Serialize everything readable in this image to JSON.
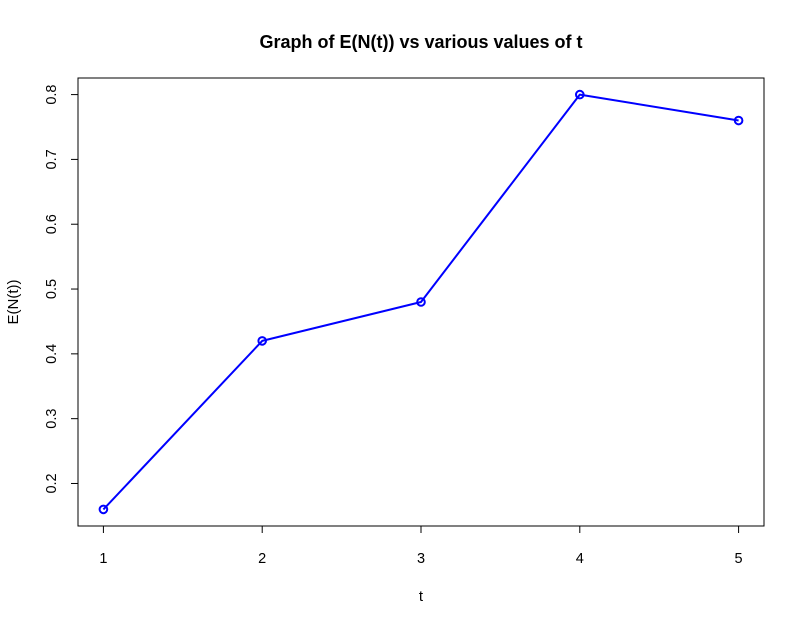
{
  "chart_data": {
    "type": "line",
    "title": "Graph of E(N(t)) vs various values of t",
    "xlabel": "t",
    "ylabel": "E(N(t))",
    "x": [
      1,
      2,
      3,
      4,
      5
    ],
    "series": [
      {
        "values": [
          0.16,
          0.42,
          0.48,
          0.8,
          0.76
        ],
        "color": "#0000ff",
        "marker": "open-circle"
      }
    ],
    "x_ticks": [
      1,
      2,
      3,
      4,
      5
    ],
    "x_tick_labels": [
      "1",
      "2",
      "3",
      "4",
      "5"
    ],
    "y_ticks": [
      0.2,
      0.3,
      0.4,
      0.5,
      0.6,
      0.7,
      0.8
    ],
    "y_tick_labels": [
      "0.2",
      "0.3",
      "0.4",
      "0.5",
      "0.6",
      "0.7",
      "0.8"
    ],
    "xlim": [
      0.84,
      5.16
    ],
    "ylim": [
      0.1344,
      0.8256
    ],
    "grid": false,
    "legend": "none"
  }
}
